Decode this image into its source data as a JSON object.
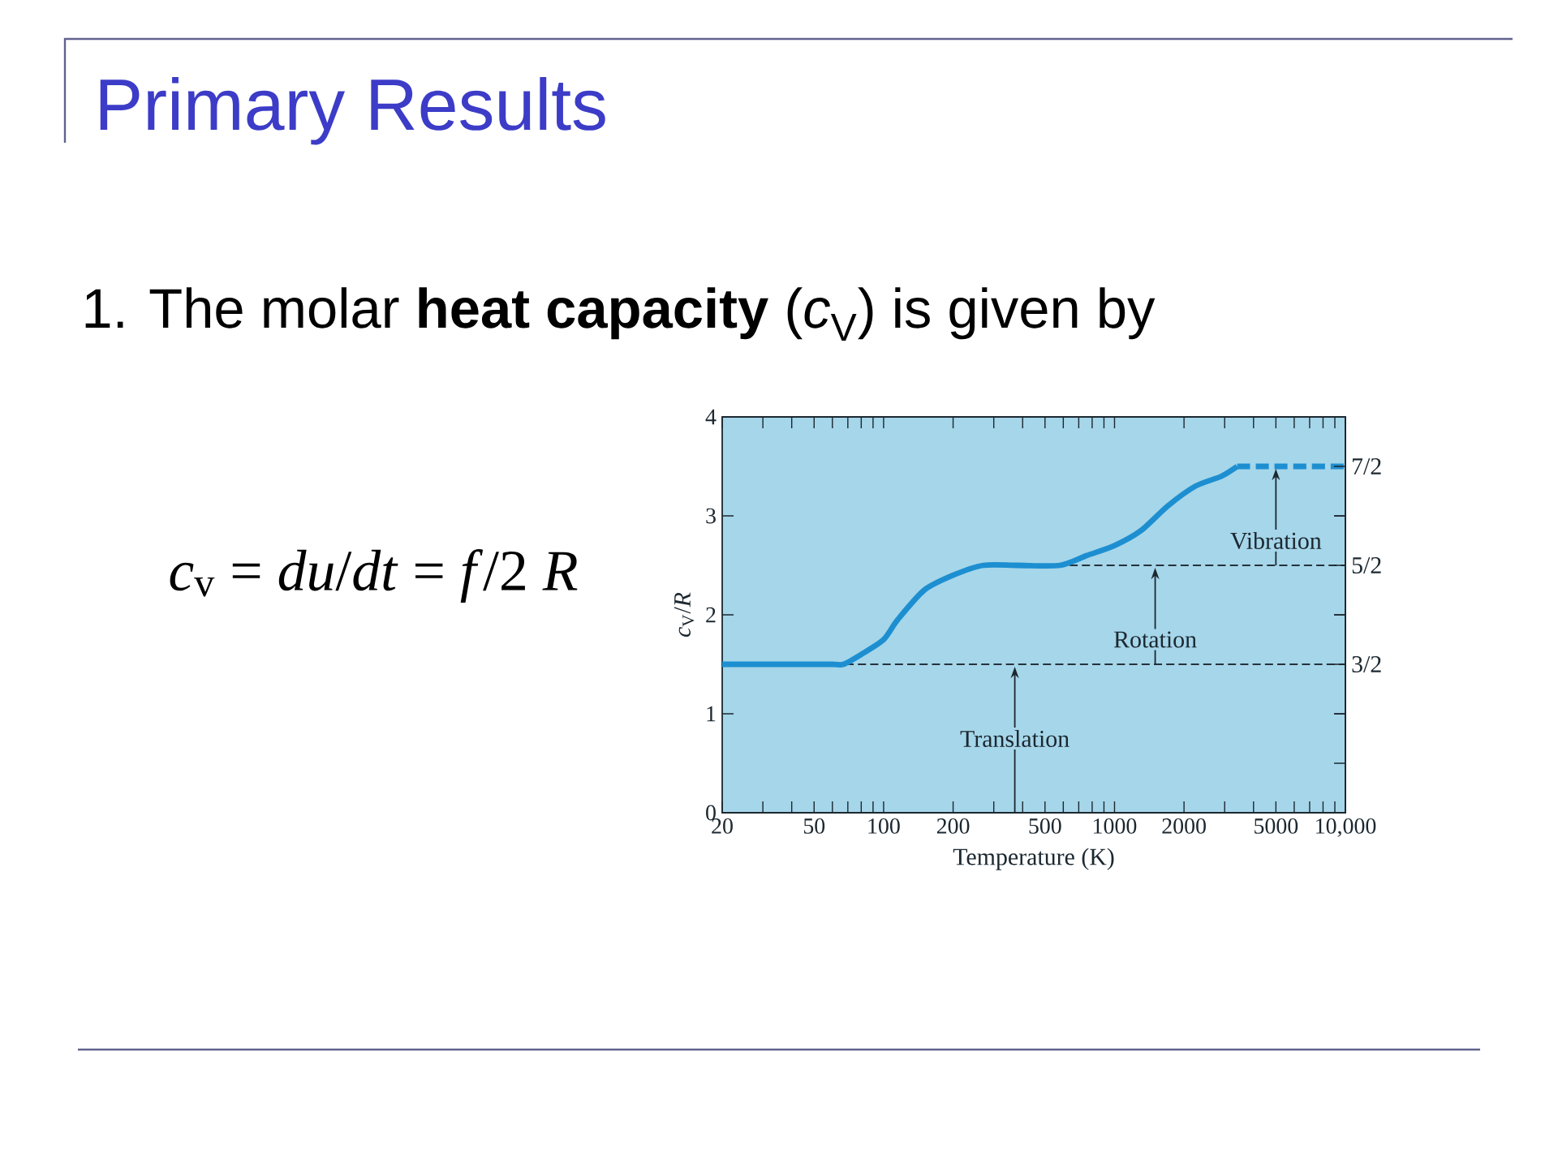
{
  "chart_data": {
    "type": "line",
    "title": "Primary Results",
    "subtitle": "1. The molar **heat capacity** (*c*$_{V}$) is given by",
    "xlabel": "Temperature (K)",
    "ylabel": "*c*$_{V}$/*R*",
    "log": "x",
    "grid": false,
    "legend": false,
    "marker": "none",
    "xlim": [
      20,
      10000
    ],
    "ylim": [
      0,
      4
    ],
    "y2lim": [
      0,
      4
    ],
    "xticks": [
      20,
      {
        "value": 30,
        "label": null
      },
      {
        "value": 40,
        "label": null
      },
      50,
      {
        "value": 60,
        "label": null
      },
      {
        "value": 70,
        "label": null
      },
      {
        "value": 80,
        "label": null
      },
      {
        "value": 90,
        "label": null
      },
      100,
      200,
      {
        "value": 300,
        "label": null
      },
      {
        "value": 400,
        "label": null
      },
      500,
      {
        "value": 600,
        "label": null
      },
      {
        "value": 700,
        "label": null
      },
      {
        "value": 800,
        "label": null
      },
      {
        "value": 900,
        "label": null
      },
      1000,
      2000,
      {
        "value": 3000,
        "label": null
      },
      {
        "value": 4000,
        "label": null
      },
      5000,
      {
        "value": 6000,
        "label": null
      },
      {
        "value": 7000,
        "label": null
      },
      {
        "value": 8000,
        "label": null
      },
      {
        "value": 9000,
        "label": null
      },
      {
        "value": 10000,
        "label": "10,000"
      }
    ],
    "yticks": [
      0,
      1,
      2,
      3,
      4
    ],
    "y2ticks": [
      {
        "value": 1.5,
        "label": "3/2"
      },
      {
        "value": 2.5,
        "label": "5/2"
      },
      {
        "value": 3.5,
        "label": "7/2"
      }
    ],
    "series": [
      {
        "color": "#1d8fd1",
        "line_style": "solid",
        "x": [
          20,
          40,
          60,
          67,
          80,
          100,
          115,
          150,
          200,
          270,
          380,
          580,
          760,
          1000,
          1300,
          1700,
          2240,
          2900,
          3400
        ],
        "values": [
          1.5,
          1.5,
          1.5,
          1.5,
          1.6,
          1.75,
          1.95,
          2.25,
          2.4,
          2.5,
          2.5,
          2.5,
          2.6,
          2.7,
          2.85,
          3.1,
          3.3,
          3.4,
          3.5
        ]
      },
      {
        "color": "#1d8fd1",
        "line_style": "dashed",
        "x": [
          3400,
          10000
        ],
        "values": [
          3.5,
          3.5
        ]
      }
    ],
    "ref_lines": [
      {
        "axis": "y",
        "value": 1.5,
        "color": "#26323a",
        "line_style": "dashed"
      },
      {
        "axis": "y",
        "value": 2.5,
        "color": "#26323a",
        "line_style": "dashed"
      }
    ],
    "annotations": [
      {
        "text": "Translation",
        "x": 370,
        "y": 1.5
      },
      {
        "text": "Rotation",
        "x": 1500,
        "y": 2.5
      },
      {
        "text": "Vibration",
        "x": 5000,
        "y": 3.5
      },
      "*c*$_{v}$ = *du*/*dt* = *f*/2 *R*"
    ]
  }
}
